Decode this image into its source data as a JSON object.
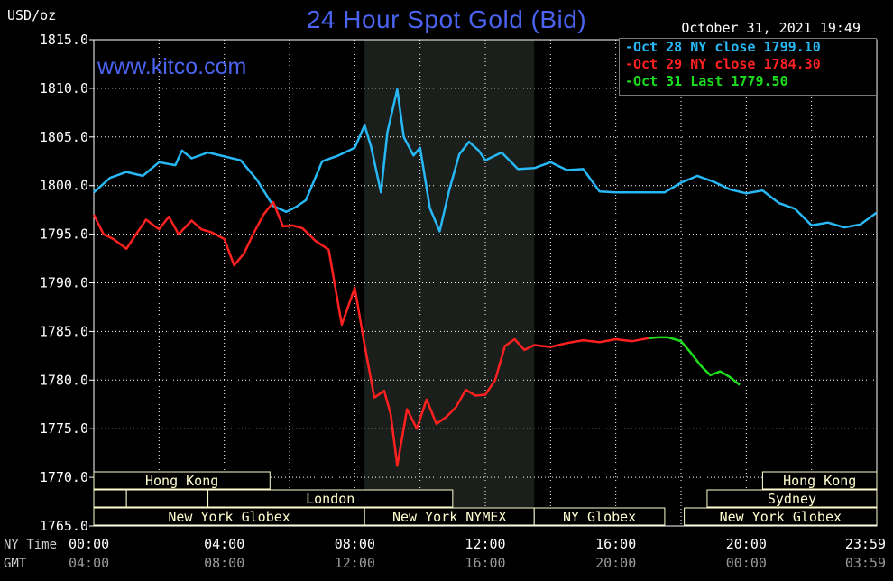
{
  "header": {
    "title": "24 Hour Spot Gold (Bid)",
    "site": "www.kitco.com",
    "date": "October 31, 2021 19:49",
    "unit": "USD/oz"
  },
  "legend": [
    {
      "text": "-Oct 28 NY close 1799.10",
      "color": "#27b8f5"
    },
    {
      "text": "-Oct 29 NY close 1784.30",
      "color": "#ff2020"
    },
    {
      "text": "-Oct 31 Last 1779.50",
      "color": "#1dde1d"
    }
  ],
  "row_labels": {
    "ny": "NY Time",
    "gmt": "GMT"
  },
  "chart_data": {
    "type": "line",
    "title": "24 Hour Spot Gold (Bid)",
    "ylabel": "USD/oz",
    "ylim": [
      1765,
      1815
    ],
    "xlim": [
      0,
      24
    ],
    "grid": true,
    "legend_position": "top-right",
    "y_ticks": [
      "1815.0",
      "1810.0",
      "1805.0",
      "1800.0",
      "1795.0",
      "1790.0",
      "1785.0",
      "1780.0",
      "1775.0",
      "1770.0",
      "1765.0"
    ],
    "x_ticks_ny": [
      "00:00",
      "04:00",
      "08:00",
      "12:00",
      "16:00",
      "20:00",
      "23:59"
    ],
    "x_ticks_gmt": [
      "04:00",
      "08:00",
      "12:00",
      "16:00",
      "20:00",
      "00:00",
      "03:59"
    ],
    "shaded_hours": [
      8.3,
      13.5
    ],
    "markets": [
      {
        "name": "Hong Kong",
        "row": 0,
        "start": 0.0,
        "end": 5.4
      },
      {
        "name": "Hong Kong",
        "row": 0,
        "start": 20.5,
        "end": 24.0
      },
      {
        "name": "",
        "row": 1,
        "start": 0.0,
        "end": 1.0
      },
      {
        "name": "",
        "row": 1,
        "start": 1.0,
        "end": 3.5
      },
      {
        "name": "London",
        "row": 1,
        "start": 3.5,
        "end": 11.0
      },
      {
        "name": "Sydney",
        "row": 1,
        "start": 18.8,
        "end": 24.0
      },
      {
        "name": "New York Globex",
        "row": 2,
        "start": 0.0,
        "end": 8.3
      },
      {
        "name": "New York NYMEX",
        "row": 2,
        "start": 8.3,
        "end": 13.5
      },
      {
        "name": "NY Globex",
        "row": 2,
        "start": 13.5,
        "end": 17.5
      },
      {
        "name": "New York Globex",
        "row": 2,
        "start": 18.1,
        "end": 24.0
      }
    ],
    "series": [
      {
        "name": "Oct 28 NY close 1799.10",
        "color": "#27b8f5",
        "x": [
          0,
          0.5,
          1,
          1.5,
          2,
          2.5,
          2.7,
          3,
          3.5,
          4,
          4.5,
          5,
          5.5,
          5.9,
          6.2,
          6.5,
          7,
          7.5,
          8,
          8.3,
          8.5,
          8.8,
          9,
          9.3,
          9.5,
          9.8,
          10,
          10.3,
          10.6,
          10.9,
          11.2,
          11.5,
          11.8,
          12,
          12.5,
          13,
          13.5,
          14,
          14.5,
          15,
          15.5,
          16,
          17,
          17.5,
          18,
          18.5,
          19,
          19.5,
          20,
          20.5,
          21,
          21.5,
          22,
          22.5,
          23,
          23.5,
          23.99
        ],
        "y": [
          1799.3,
          1800.8,
          1801.4,
          1801.0,
          1802.4,
          1802.1,
          1803.6,
          1802.8,
          1803.4,
          1803.0,
          1802.6,
          1800.6,
          1797.9,
          1797.3,
          1797.8,
          1798.5,
          1802.5,
          1803.1,
          1803.9,
          1806.2,
          1804.0,
          1799.3,
          1805.5,
          1809.9,
          1805.0,
          1803.1,
          1803.9,
          1797.7,
          1795.3,
          1799.6,
          1803.2,
          1804.5,
          1803.6,
          1802.6,
          1803.4,
          1801.7,
          1801.8,
          1802.4,
          1801.6,
          1801.7,
          1799.4,
          1799.3,
          1799.3,
          1799.3,
          1800.3,
          1801.0,
          1800.4,
          1799.6,
          1799.2,
          1799.5,
          1798.2,
          1797.6,
          1795.9,
          1796.2,
          1795.7,
          1796.0,
          1797.2
        ]
      },
      {
        "name": "Oct 29 NY close 1784.30",
        "color": "#ff2020",
        "x": [
          0,
          0.3,
          0.6,
          1,
          1.3,
          1.6,
          2,
          2.3,
          2.6,
          3,
          3.3,
          3.6,
          4,
          4.3,
          4.6,
          4.9,
          5.2,
          5.5,
          5.8,
          6.1,
          6.4,
          6.8,
          7.2,
          7.6,
          8.0,
          8.3,
          8.6,
          8.9,
          9.1,
          9.3,
          9.6,
          9.9,
          10.2,
          10.5,
          10.8,
          11.1,
          11.4,
          11.7,
          12.0,
          12.3,
          12.6,
          12.9,
          13.2,
          13.5,
          14,
          14.5,
          15,
          15.5,
          16,
          16.5,
          17
        ],
        "y": [
          1797.0,
          1795.0,
          1794.5,
          1793.5,
          1795.0,
          1796.5,
          1795.5,
          1796.8,
          1795.0,
          1796.4,
          1795.5,
          1795.2,
          1794.5,
          1791.8,
          1793.0,
          1795.1,
          1797.0,
          1798.3,
          1795.8,
          1795.9,
          1795.6,
          1794.3,
          1793.4,
          1785.7,
          1789.5,
          1783.6,
          1778.2,
          1778.9,
          1776.5,
          1771.2,
          1777.0,
          1775.0,
          1778.0,
          1775.5,
          1776.2,
          1777.2,
          1779.0,
          1778.4,
          1778.5,
          1780.0,
          1783.5,
          1784.2,
          1783.1,
          1783.6,
          1783.4,
          1783.8,
          1784.1,
          1783.9,
          1784.2,
          1784.0,
          1784.3
        ]
      },
      {
        "name": "Oct 31 Last 1779.50",
        "color": "#1dde1d",
        "x": [
          17,
          17.3,
          17.6,
          17.8,
          18.0,
          18.3,
          18.6,
          18.9,
          19.2,
          19.5,
          19.8
        ],
        "y": [
          1784.3,
          1784.4,
          1784.4,
          1784.2,
          1784.0,
          1782.8,
          1781.5,
          1780.5,
          1780.9,
          1780.3,
          1779.5
        ]
      }
    ]
  }
}
